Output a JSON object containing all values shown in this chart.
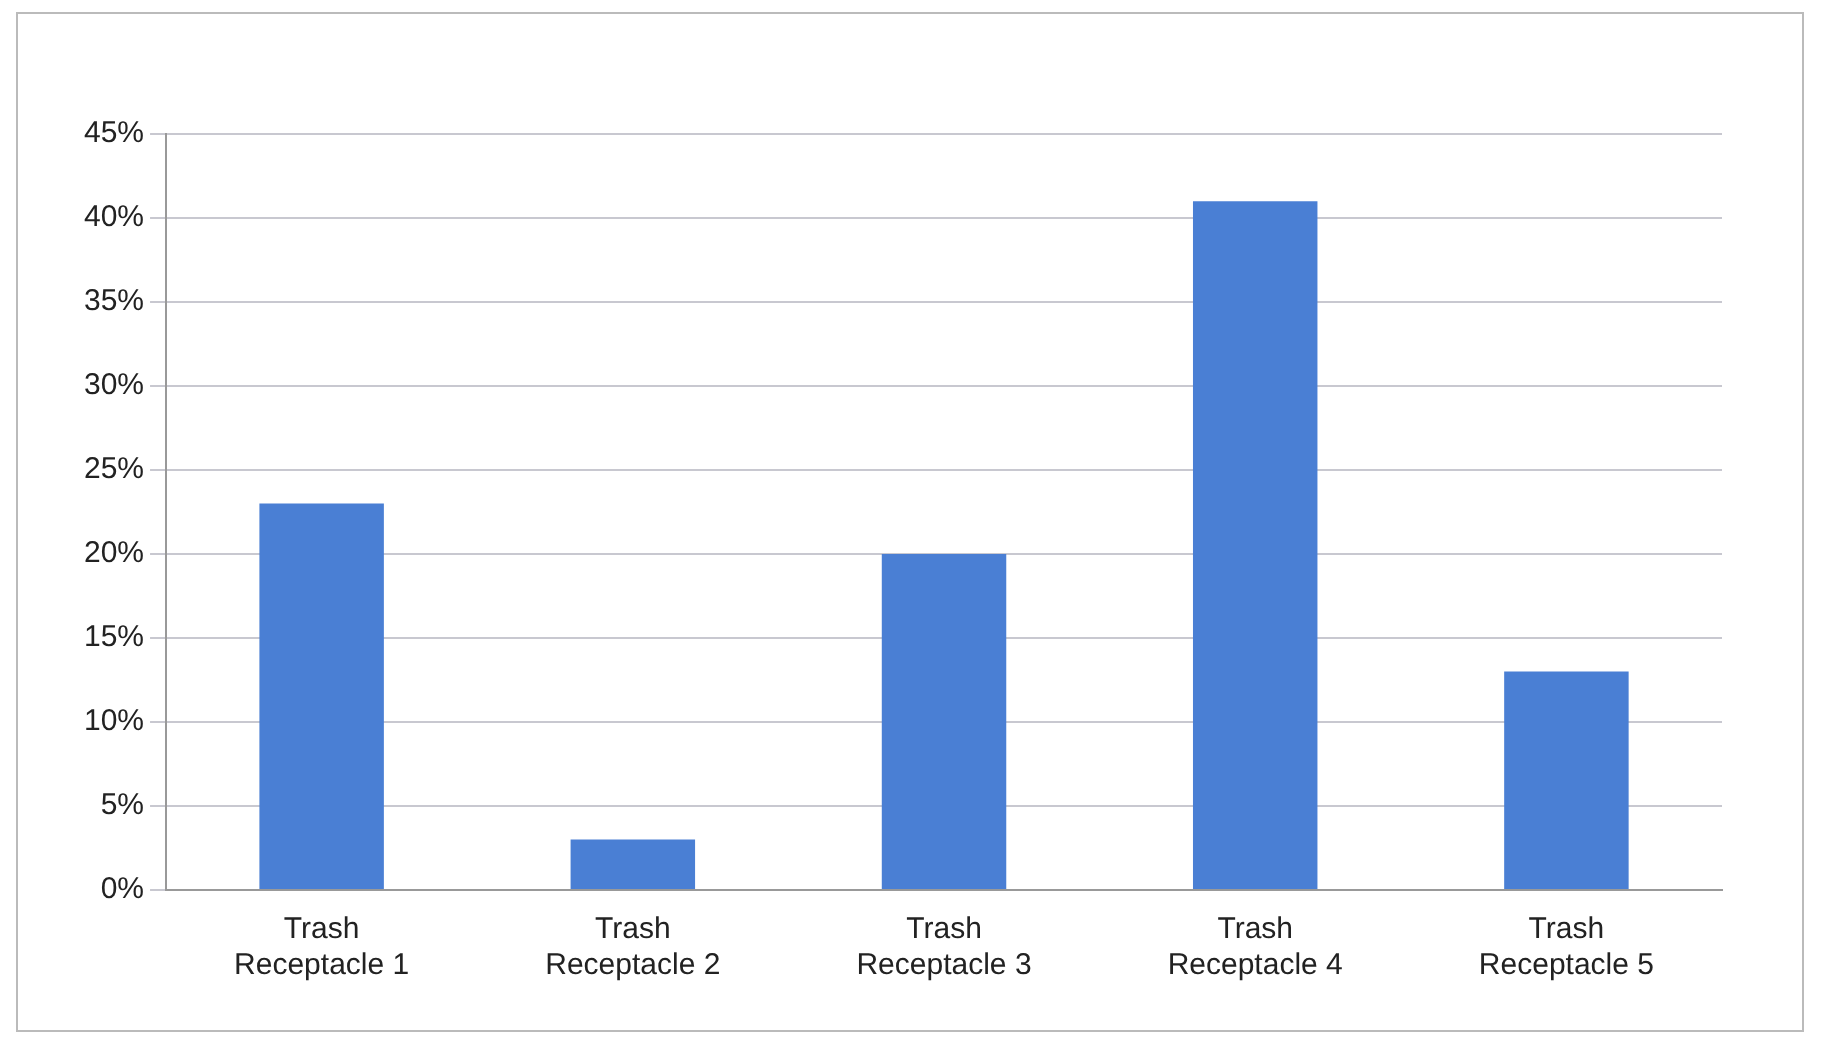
{
  "chart_data": {
    "type": "bar",
    "categories": [
      "Trash Receptacle 1",
      "Trash Receptacle 2",
      "Trash Receptacle 3",
      "Trash Receptacle 4",
      "Trash Receptacle 5"
    ],
    "values": [
      23,
      3,
      20,
      41,
      13
    ],
    "color": "#4a7fd4",
    "ylim": [
      0,
      45
    ],
    "yticks": [
      {
        "value": 0,
        "label": "0%"
      },
      {
        "value": 5,
        "label": "5%"
      },
      {
        "value": 10,
        "label": "10%"
      },
      {
        "value": 15,
        "label": "15%"
      },
      {
        "value": 20,
        "label": "20%"
      },
      {
        "value": 25,
        "label": "25%"
      },
      {
        "value": 30,
        "label": "30%"
      },
      {
        "value": 35,
        "label": "35%"
      },
      {
        "value": 40,
        "label": "40%"
      },
      {
        "value": 45,
        "label": "45%"
      }
    ],
    "grid": "y",
    "legend": false
  }
}
